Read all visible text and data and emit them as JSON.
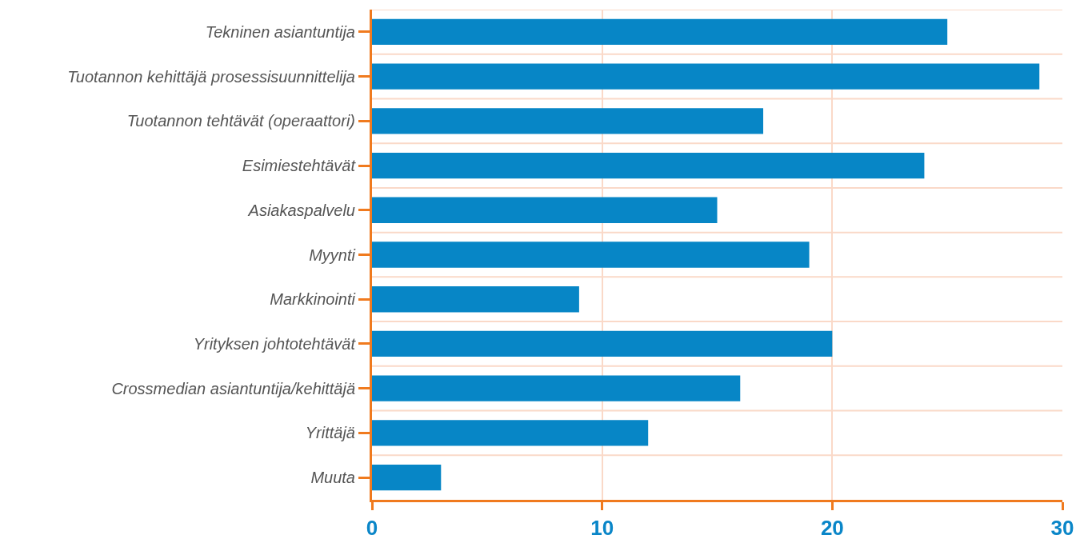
{
  "chart_data": {
    "type": "bar",
    "orientation": "horizontal",
    "categories": [
      "Tekninen asiantuntija",
      "Tuotannon kehittäjä prosessisuunnittelija",
      "Tuotannon tehtävät (operaattori)",
      "Esimiestehtävät",
      "Asiakaspalvelu",
      "Myynti",
      "Markkinointi",
      "Yrityksen johtotehtävät",
      "Crossmedian asiantuntija/kehittäjä",
      "Yrittäjä",
      "Muuta"
    ],
    "values": [
      25,
      29,
      17,
      24,
      15,
      19,
      9,
      20,
      16,
      12,
      3
    ],
    "color": "#0786c6",
    "xlim": [
      0,
      30
    ],
    "xticks": [
      0,
      10,
      20,
      30
    ],
    "grid": true
  }
}
